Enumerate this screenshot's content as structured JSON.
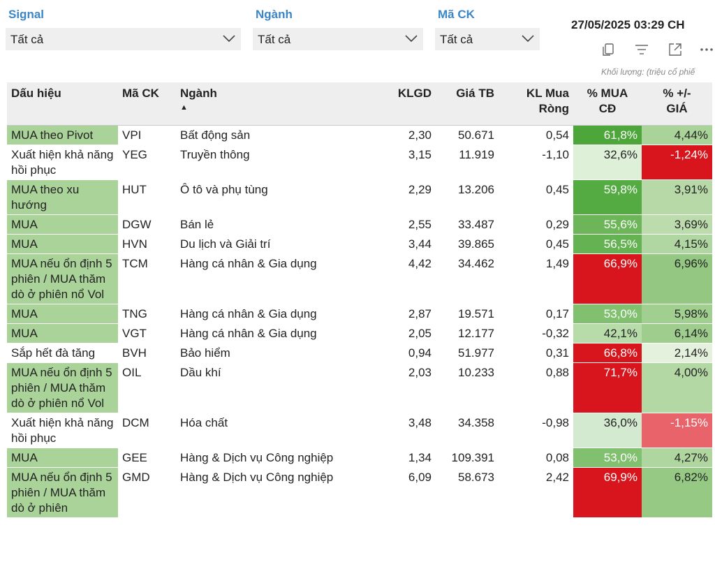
{
  "filters": [
    {
      "label": "Signal",
      "value": "Tất cả"
    },
    {
      "label": "Ngành",
      "value": "Tất cả"
    },
    {
      "label": "Mã CK",
      "value": "Tất cả"
    }
  ],
  "timestamp": "27/05/2025 03:29 CH",
  "toolbar": {
    "icons": [
      "copy-icon",
      "filter-icon",
      "expand-icon",
      "more-icon"
    ]
  },
  "volume_note": "Khối lượng: (triệu cổ phiế",
  "table": {
    "headers": {
      "signal": "Dấu hiệu",
      "ticker": "Mã CK",
      "sector": "Ngành",
      "klgd": "KLGD",
      "avg_price": "Giá TB",
      "net_buy_line1": "KL Mua",
      "net_buy_line2": "Ròng",
      "pct_buy_line1": "% MUA",
      "pct_buy_line2": "CĐ",
      "pct_change_line1": "% +/-",
      "pct_change_line2": "GIÁ"
    },
    "sort_indicator": "▲",
    "rows": [
      {
        "signal": "MUA theo Pivot",
        "ticker": "VPI",
        "sector": "Bất động sản",
        "klgd": "2,30",
        "avg_price": "50.671",
        "net_buy": "0,54",
        "pct_buy": "61,8%",
        "pct_change": "4,44%",
        "signal_bg": "#aad39a",
        "buy_bg": "#4ca63a",
        "buy_fg": "#ffffff",
        "chg_bg": "#aad39a",
        "chg_fg": "#222222"
      },
      {
        "signal": "Xuất hiện khả năng hồi phục",
        "ticker": "YEG",
        "sector": "Truyền thông",
        "klgd": "3,15",
        "avg_price": "11.919",
        "net_buy": "-1,10",
        "pct_buy": "32,6%",
        "pct_change": "-1,24%",
        "signal_bg": "#ffffff",
        "buy_bg": "#dff0d8",
        "buy_fg": "#222222",
        "chg_bg": "#d8141c",
        "chg_fg": "#ffffff"
      },
      {
        "signal": "MUA theo xu hướng",
        "ticker": "HUT",
        "sector": "Ô tô và phụ tùng",
        "klgd": "2,29",
        "avg_price": "13.206",
        "net_buy": "0,45",
        "pct_buy": "59,8%",
        "pct_change": "3,91%",
        "signal_bg": "#aad39a",
        "buy_bg": "#54ab42",
        "buy_fg": "#ffffff",
        "chg_bg": "#b6d9a7",
        "chg_fg": "#222222"
      },
      {
        "signal": "MUA",
        "ticker": "DGW",
        "sector": "Bán lẻ",
        "klgd": "2,55",
        "avg_price": "33.487",
        "net_buy": "0,29",
        "pct_buy": "55,6%",
        "pct_change": "3,69%",
        "signal_bg": "#aad39a",
        "buy_bg": "#6cb659",
        "buy_fg": "#ffffff",
        "chg_bg": "#bcdcad",
        "chg_fg": "#222222"
      },
      {
        "signal": "MUA",
        "ticker": "HVN",
        "sector": "Du lịch và Giải trí",
        "klgd": "3,44",
        "avg_price": "39.865",
        "net_buy": "0,45",
        "pct_buy": "56,5%",
        "pct_change": "4,15%",
        "signal_bg": "#aad39a",
        "buy_bg": "#65b252",
        "buy_fg": "#ffffff",
        "chg_bg": "#b0d6a1",
        "chg_fg": "#222222"
      },
      {
        "signal": "MUA nếu ổn định 5 phiên / MUA thăm dò ở phiên nổ Vol",
        "ticker": "TCM",
        "sector": "Hàng cá nhân & Gia dụng",
        "klgd": "4,42",
        "avg_price": "34.462",
        "net_buy": "1,49",
        "pct_buy": "66,9%",
        "pct_change": "6,96%",
        "signal_bg": "#aad39a",
        "buy_bg": "#d8141c",
        "buy_fg": "#ffffff",
        "chg_bg": "#94c882",
        "chg_fg": "#222222"
      },
      {
        "signal": "MUA",
        "ticker": "TNG",
        "sector": "Hàng cá nhân & Gia dụng",
        "klgd": "2,87",
        "avg_price": "19.571",
        "net_buy": "0,17",
        "pct_buy": "53,0%",
        "pct_change": "5,98%",
        "signal_bg": "#aad39a",
        "buy_bg": "#80c06f",
        "buy_fg": "#ffffff",
        "chg_bg": "#a1cf90",
        "chg_fg": "#222222"
      },
      {
        "signal": "MUA",
        "ticker": "VGT",
        "sector": "Hàng cá nhân & Gia dụng",
        "klgd": "2,05",
        "avg_price": "12.177",
        "net_buy": "-0,32",
        "pct_buy": "42,1%",
        "pct_change": "6,14%",
        "signal_bg": "#aad39a",
        "buy_bg": "#b8dbaa",
        "buy_fg": "#222222",
        "chg_bg": "#9ecd8d",
        "chg_fg": "#222222"
      },
      {
        "signal": "Sắp hết đà tăng",
        "ticker": "BVH",
        "sector": "Bảo hiểm",
        "klgd": "0,94",
        "avg_price": "51.977",
        "net_buy": "0,31",
        "pct_buy": "66,8%",
        "pct_change": "2,14%",
        "signal_bg": "#ffffff",
        "buy_bg": "#d8141c",
        "buy_fg": "#ffffff",
        "chg_bg": "#e3f1dd",
        "chg_fg": "#222222"
      },
      {
        "signal": "MUA nếu ổn định 5 phiên / MUA thăm dò ở phiên nổ Vol",
        "ticker": "OIL",
        "sector": "Dầu khí",
        "klgd": "2,03",
        "avg_price": "10.233",
        "net_buy": "0,88",
        "pct_buy": "71,7%",
        "pct_change": "4,00%",
        "signal_bg": "#aad39a",
        "buy_bg": "#d8141c",
        "buy_fg": "#ffffff",
        "chg_bg": "#b3d8a4",
        "chg_fg": "#222222"
      },
      {
        "signal": "Xuất hiện khả năng hồi phục",
        "ticker": "DCM",
        "sector": "Hóa chất",
        "klgd": "3,48",
        "avg_price": "34.358",
        "net_buy": "-0,98",
        "pct_buy": "36,0%",
        "pct_change": "-1,15%",
        "signal_bg": "#ffffff",
        "buy_bg": "#d3ead0",
        "buy_fg": "#222222",
        "chg_bg": "#e8636a",
        "chg_fg": "#ffffff"
      },
      {
        "signal": "MUA",
        "ticker": "GEE",
        "sector": "Hàng & Dịch vụ Công nghiệp",
        "klgd": "1,34",
        "avg_price": "109.391",
        "net_buy": "0,08",
        "pct_buy": "53,0%",
        "pct_change": "4,27%",
        "signal_bg": "#aad39a",
        "buy_bg": "#80c06f",
        "buy_fg": "#ffffff",
        "chg_bg": "#afd69f",
        "chg_fg": "#222222"
      },
      {
        "signal": "MUA nếu ổn định 5 phiên / MUA thăm dò ở phiên",
        "ticker": "GMD",
        "sector": "Hàng & Dịch vụ Công nghiệp",
        "klgd": "6,09",
        "avg_price": "58.673",
        "net_buy": "2,42",
        "pct_buy": "69,9%",
        "pct_change": "6,82%",
        "signal_bg": "#aad39a",
        "buy_bg": "#d8141c",
        "buy_fg": "#ffffff",
        "chg_bg": "#96c984",
        "chg_fg": "#222222"
      }
    ]
  }
}
